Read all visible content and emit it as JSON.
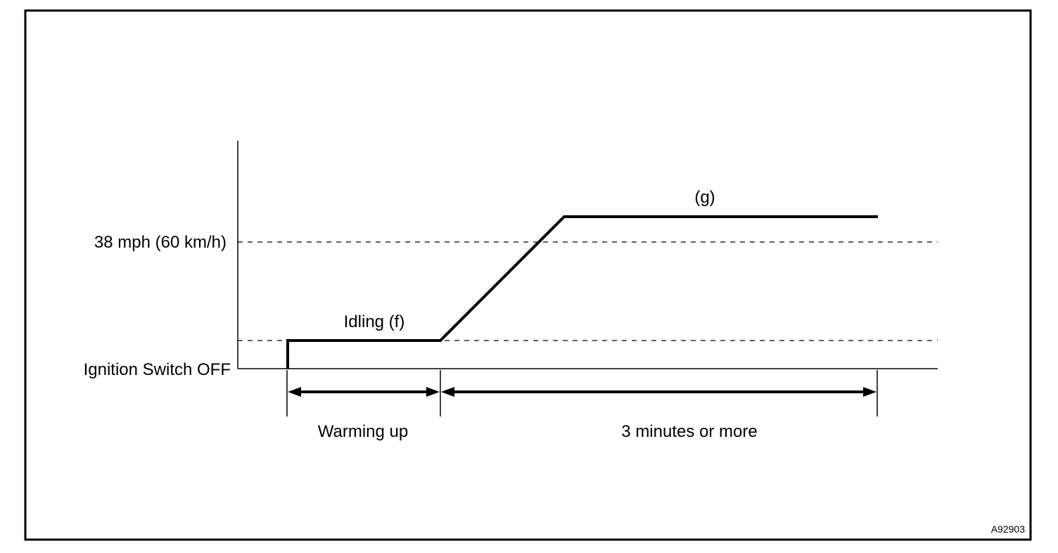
{
  "figure_id": "A92903",
  "y_levels": {
    "speed_label": "38 mph (60 km/h)",
    "ignition_label": "Ignition Switch OFF"
  },
  "phases": {
    "idling_label": "Idling (f)",
    "drive_label": "(g)"
  },
  "durations": {
    "warming_label": "Warming up",
    "drive_duration_label": "3 minutes or more"
  },
  "colors": {
    "ink": "#000000",
    "background": "#ffffff"
  }
}
